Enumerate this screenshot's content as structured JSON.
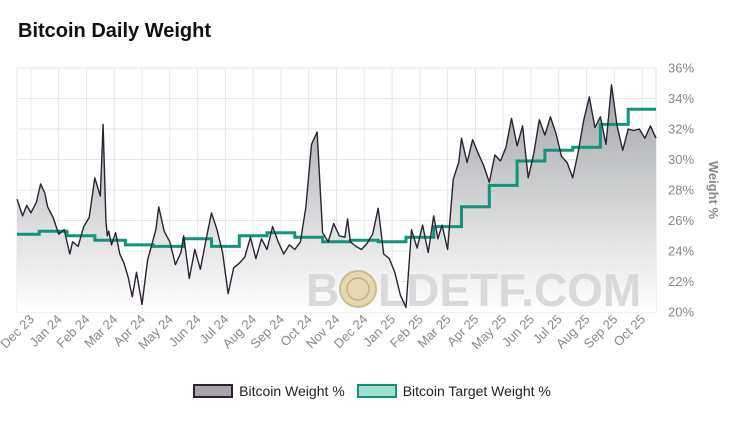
{
  "title": "Bitcoin Daily Weight",
  "watermark": {
    "left": "B",
    "right": "LDETF.COM"
  },
  "legend": [
    {
      "label": "Bitcoin Weight %"
    },
    {
      "label": "Bitcoin Target Weight %"
    }
  ],
  "colors": {
    "weight_line": "#2d2233",
    "target_line": "#10947c",
    "fill_top": "#9c9ea0",
    "fill_bottom": "#ffffff",
    "grid": "#e6e6e6"
  },
  "chart_data": {
    "type": "line",
    "title": "Bitcoin Daily Weight",
    "xlabel": "",
    "ylabel": "Weight %",
    "ylim": [
      20,
      36
    ],
    "yticks": [
      20,
      22,
      24,
      26,
      28,
      30,
      32,
      34,
      36
    ],
    "ytick_labels": [
      "20%",
      "22%",
      "24%",
      "26%",
      "28%",
      "30%",
      "32%",
      "34%",
      "36%"
    ],
    "ytick_position": "right",
    "xlim": [
      0,
      23
    ],
    "xticks": [
      "Dec 23",
      "Jan 24",
      "Feb 24",
      "Mar 24",
      "Apr 24",
      "May 24",
      "Jun 24",
      "Jul 24",
      "Aug 24",
      "Sep 24",
      "Oct 24",
      "Nov 24",
      "Dec 24",
      "Jan 25",
      "Feb 25",
      "Mar 25",
      "Apr 25",
      "May 25",
      "Jun 25",
      "Jul 25",
      "Aug 25",
      "Sep 25",
      "Oct 25"
    ],
    "grid": true,
    "legend_position": "bottom-center",
    "series": [
      {
        "name": "Bitcoin Weight %",
        "x": [
          0,
          0.2,
          0.35,
          0.5,
          0.7,
          0.85,
          1.0,
          1.1,
          1.3,
          1.5,
          1.7,
          1.9,
          2.0,
          2.2,
          2.4,
          2.6,
          2.8,
          3.0,
          3.1,
          3.2,
          3.25,
          3.3,
          3.4,
          3.55,
          3.7,
          3.85,
          4.0,
          4.15,
          4.3,
          4.5,
          4.7,
          4.85,
          5.0,
          5.1,
          5.3,
          5.5,
          5.7,
          5.9,
          6.0,
          6.2,
          6.4,
          6.6,
          6.8,
          7.0,
          7.2,
          7.4,
          7.6,
          7.8,
          8.0,
          8.2,
          8.4,
          8.6,
          8.8,
          9.0,
          9.2,
          9.4,
          9.6,
          9.8,
          10.0,
          10.2,
          10.4,
          10.6,
          10.8,
          11.0,
          11.2,
          11.4,
          11.6,
          11.8,
          11.9,
          12.0,
          12.2,
          12.4,
          12.6,
          12.8,
          13.0,
          13.2,
          13.4,
          13.6,
          13.8,
          14.0,
          14.2,
          14.4,
          14.6,
          14.8,
          15.0,
          15.15,
          15.3,
          15.5,
          15.7,
          15.9,
          16.0,
          16.2,
          16.4,
          16.6,
          16.8,
          17.0,
          17.2,
          17.4,
          17.6,
          17.8,
          18.0,
          18.2,
          18.4,
          18.6,
          18.8,
          19.0,
          19.2,
          19.4,
          19.6,
          19.8,
          20.0,
          20.2,
          20.4,
          20.6,
          20.8,
          21.0,
          21.2,
          21.4,
          21.6,
          21.8,
          22.0,
          22.2,
          22.4,
          22.6,
          22.8,
          23.0
        ],
        "values": [
          27.4,
          26.3,
          27.0,
          26.5,
          27.2,
          28.4,
          27.8,
          26.9,
          26.2,
          25.1,
          25.4,
          23.8,
          24.6,
          24.3,
          25.6,
          26.2,
          28.8,
          27.6,
          32.3,
          26.0,
          25.0,
          25.3,
          24.4,
          25.2,
          23.8,
          23.2,
          22.3,
          21.0,
          22.6,
          20.5,
          23.4,
          24.4,
          25.4,
          26.9,
          25.3,
          24.6,
          23.1,
          23.9,
          25.0,
          22.2,
          24.1,
          22.8,
          24.7,
          26.5,
          25.4,
          23.9,
          21.2,
          22.9,
          23.2,
          23.6,
          24.9,
          23.5,
          24.8,
          24.1,
          25.6,
          24.6,
          23.8,
          24.4,
          24.1,
          24.6,
          26.9,
          31.0,
          31.8,
          25.2,
          24.6,
          25.8,
          25.0,
          24.9,
          26.1,
          24.6,
          24.3,
          24.1,
          24.5,
          25.1,
          26.8,
          23.8,
          23.5,
          22.6,
          21.1,
          20.3,
          25.4,
          24.2,
          25.7,
          23.9,
          26.3,
          24.8,
          25.7,
          24.1,
          28.7,
          29.8,
          31.4,
          29.8,
          31.3,
          30.4,
          29.6,
          28.5,
          30.3,
          29.9,
          30.8,
          32.7,
          30.9,
          32.2,
          28.8,
          30.4,
          32.6,
          31.6,
          32.8,
          31.7,
          30.2,
          29.8,
          28.8,
          30.5,
          32.6,
          34.1,
          32.1,
          32.8,
          31.0,
          34.9,
          32.2,
          30.6,
          32.0,
          31.9,
          32.0,
          31.4,
          32.2,
          31.4
        ]
      },
      {
        "name": "Bitcoin Target Weight %",
        "x": [
          0,
          0.8,
          0.8,
          1.8,
          1.8,
          2.8,
          2.8,
          3.9,
          3.9,
          4.9,
          4.9,
          6.0,
          6.0,
          7.0,
          7.0,
          8.0,
          8.0,
          9.0,
          9.0,
          10.0,
          10.0,
          11.0,
          11.0,
          12.0,
          12.0,
          13.0,
          13.0,
          14.0,
          14.0,
          15.0,
          15.0,
          16.0,
          16.0,
          17.0,
          17.0,
          18.0,
          18.0,
          19.0,
          19.0,
          20.0,
          20.0,
          21.0,
          21.0,
          22.0,
          22.0,
          23.0
        ],
        "values": [
          25.1,
          25.1,
          25.3,
          25.3,
          25.0,
          25.0,
          24.7,
          24.7,
          24.4,
          24.4,
          24.3,
          24.3,
          24.8,
          24.8,
          24.3,
          24.3,
          25.0,
          25.0,
          25.2,
          25.2,
          24.9,
          24.9,
          24.6,
          24.6,
          24.7,
          24.7,
          24.6,
          24.6,
          24.9,
          24.9,
          25.6,
          25.6,
          26.9,
          26.9,
          28.3,
          28.3,
          29.9,
          29.9,
          30.6,
          30.6,
          30.8,
          30.8,
          32.3,
          32.3,
          33.3,
          33.3
        ]
      }
    ]
  }
}
